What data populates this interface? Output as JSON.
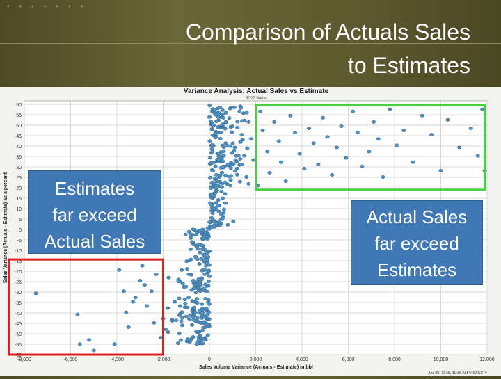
{
  "slide": {
    "title_line1": "Comparison of Actuals Sales",
    "title_line2": "to Estimates",
    "dots": "• • • • • • •"
  },
  "callouts": {
    "left": [
      "Estimates",
      "far exceed",
      "Actual Sales"
    ],
    "right": [
      "Actual Sales",
      "far exceed",
      "Estimates"
    ]
  },
  "colors": {
    "accent_green": "#45d33c",
    "accent_red": "#e0201e",
    "point_fill": "#4f8fc0",
    "callout_blue": "#3f78b5"
  },
  "chart_data": {
    "type": "scatter",
    "title": "Variance Analysis: Actual Sales vs Estimate",
    "subtitle": "3027 Wells",
    "xlabel": "Sales Volume Variance (Actuals - Estimate) in bbl",
    "ylabel": "Sales Variance (Actuals - Estimate) as a percent",
    "footer": "Apr 30, 2015, 11:18 AM VISAGE™",
    "xlim": [
      -8000,
      12000
    ],
    "ylim": [
      -60,
      60
    ],
    "xticks": [
      -8000,
      -6000,
      -4000,
      -2000,
      0,
      2000,
      4000,
      6000,
      8000,
      10000,
      12000
    ],
    "xtick_labels": [
      "-8,000",
      "-6,000",
      "-4,000",
      "-2,000",
      "0",
      "2,000",
      "4,000",
      "6,000",
      "8,000",
      "10,000",
      "12,000"
    ],
    "yticks": [
      50,
      55,
      50,
      45,
      40,
      35,
      30,
      25,
      20,
      15,
      10,
      5,
      0,
      -5,
      -10,
      -15,
      -20,
      -25,
      -30,
      -35,
      -40,
      -45,
      -50,
      -55,
      -50
    ],
    "ytick_labels": [
      "50",
      "55",
      "50",
      "45",
      "40",
      "35",
      "30",
      "25",
      "20",
      "15",
      "10",
      "5",
      "0",
      "-5",
      "-10",
      "-15",
      "-20",
      "-25",
      "-30",
      "-35",
      "-40",
      "-45",
      "-50",
      "-55",
      "-50"
    ],
    "grid": true,
    "highlight_boxes": [
      {
        "color": "green",
        "x": [
          2000,
          11900
        ],
        "y": [
          18,
          58
        ]
      },
      {
        "color": "red",
        "x": [
          -8000,
          -2000
        ],
        "y": [
          -60,
          -15
        ]
      }
    ],
    "points": [
      [
        -7500,
        -31
      ],
      [
        -5700,
        -41
      ],
      [
        -5600,
        -55
      ],
      [
        -5200,
        -53
      ],
      [
        -5000,
        -58
      ],
      [
        -4100,
        -55
      ],
      [
        -3900,
        -20
      ],
      [
        -3700,
        -30
      ],
      [
        -3600,
        -40
      ],
      [
        -3500,
        -47
      ],
      [
        -3300,
        -35
      ],
      [
        -3200,
        -33
      ],
      [
        -3000,
        -25
      ],
      [
        -2900,
        -18
      ],
      [
        -2800,
        -27
      ],
      [
        -2700,
        -37
      ],
      [
        -2500,
        -30
      ],
      [
        -2400,
        -45
      ],
      [
        -2300,
        -22
      ],
      [
        -2100,
        -52
      ],
      [
        -2000,
        -43
      ],
      [
        -1900,
        -48
      ],
      [
        -1800,
        -38
      ],
      [
        -1600,
        -44
      ],
      [
        -1500,
        -35
      ],
      [
        -1300,
        -50
      ],
      [
        -1200,
        -20
      ],
      [
        -1100,
        -28
      ],
      [
        -1000,
        -42
      ],
      [
        -900,
        -33
      ],
      [
        -800,
        -15
      ],
      [
        -700,
        -25
      ],
      [
        -600,
        -40
      ],
      [
        -500,
        -10
      ],
      [
        -400,
        -30
      ],
      [
        -300,
        -5
      ],
      [
        -200,
        -22
      ],
      [
        -100,
        -12
      ],
      [
        -50,
        -3
      ],
      [
        -150,
        -18
      ],
      [
        100,
        8
      ],
      [
        200,
        15
      ],
      [
        300,
        25
      ],
      [
        400,
        35
      ],
      [
        500,
        45
      ],
      [
        600,
        52
      ],
      [
        700,
        40
      ],
      [
        800,
        30
      ],
      [
        900,
        20
      ],
      [
        1000,
        48
      ],
      [
        1100,
        38
      ],
      [
        1200,
        28
      ],
      [
        1300,
        55
      ],
      [
        1400,
        44
      ],
      [
        1500,
        34
      ],
      [
        1600,
        24
      ],
      [
        1700,
        50
      ],
      [
        1800,
        42
      ],
      [
        1900,
        32
      ],
      [
        2100,
        20
      ],
      [
        2200,
        55
      ],
      [
        2300,
        46
      ],
      [
        2500,
        36
      ],
      [
        2600,
        26
      ],
      [
        2800,
        50
      ],
      [
        3000,
        41
      ],
      [
        3100,
        31
      ],
      [
        3300,
        22
      ],
      [
        3500,
        53
      ],
      [
        3700,
        45
      ],
      [
        3900,
        35
      ],
      [
        4100,
        28
      ],
      [
        4300,
        47
      ],
      [
        4500,
        40
      ],
      [
        4700,
        30
      ],
      [
        4900,
        52
      ],
      [
        5100,
        43
      ],
      [
        5300,
        25
      ],
      [
        5500,
        38
      ],
      [
        5700,
        48
      ],
      [
        5900,
        33
      ],
      [
        6200,
        55
      ],
      [
        6400,
        45
      ],
      [
        6600,
        29
      ],
      [
        6900,
        36
      ],
      [
        7100,
        50
      ],
      [
        7300,
        42
      ],
      [
        7500,
        24
      ],
      [
        7800,
        56
      ],
      [
        8100,
        39
      ],
      [
        8400,
        46
      ],
      [
        8800,
        31
      ],
      [
        9200,
        53
      ],
      [
        9600,
        44
      ],
      [
        10000,
        27
      ],
      [
        10300,
        51
      ],
      [
        10800,
        38
      ],
      [
        11300,
        47
      ],
      [
        11600,
        34
      ],
      [
        11800,
        56
      ],
      [
        11900,
        27
      ]
    ],
    "column_cluster_x": 0
  }
}
